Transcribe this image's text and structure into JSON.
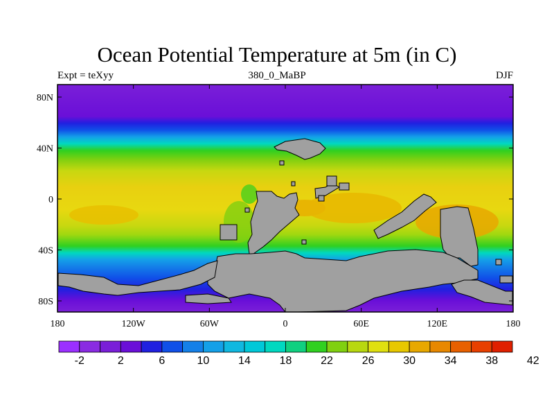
{
  "title": "Ocean Potential Temperature at 5m (in C)",
  "left_label": "Expt = teXyy",
  "center_label": "380_0_MaBP",
  "right_label": "DJF",
  "x_ticks": [
    "180",
    "120W",
    "60W",
    "0",
    "60E",
    "120E",
    "180"
  ],
  "y_ticks": [
    "80N",
    "40N",
    "0",
    "40S",
    "80S"
  ],
  "colorbar": {
    "labels": [
      "-2",
      "2",
      "6",
      "10",
      "14",
      "18",
      "22",
      "26",
      "30",
      "34",
      "38",
      "42"
    ],
    "colors": [
      "#9b30ff",
      "#8a2be2",
      "#7a1fd8",
      "#6a0fd8",
      "#2020e0",
      "#1050e8",
      "#1480e8",
      "#14a0e8",
      "#10b8e0",
      "#00c8d8",
      "#00d8c0",
      "#10d080",
      "#30d020",
      "#80d010",
      "#b8d810",
      "#e0e010",
      "#e8c800",
      "#e8a800",
      "#e88800",
      "#e86000",
      "#e84000",
      "#e02000"
    ],
    "land_color": "#a0a0a0"
  }
}
